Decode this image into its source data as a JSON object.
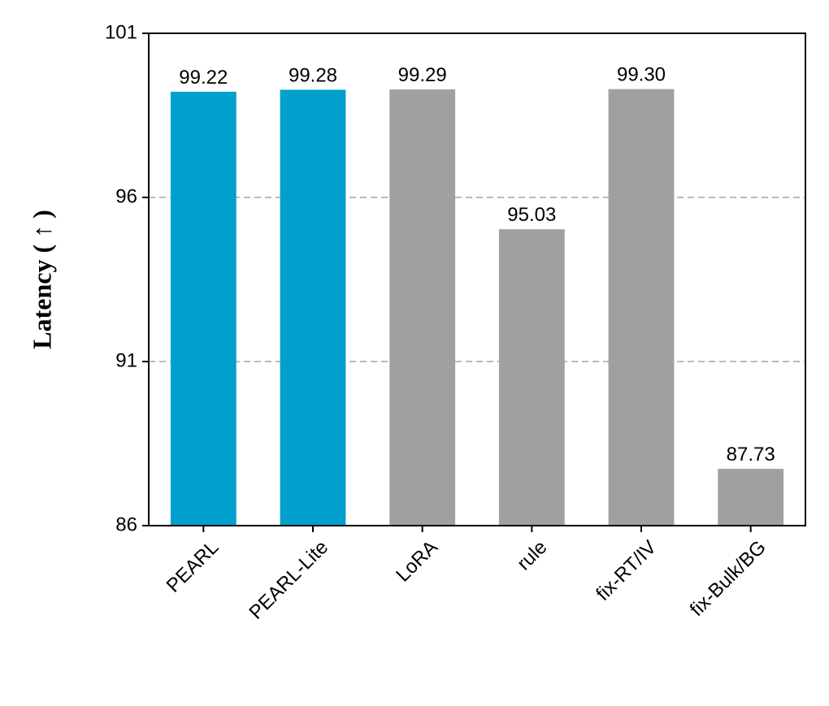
{
  "chart_data": {
    "type": "bar",
    "y_label": "Latency ( ↑ )",
    "categories": [
      "PEARL",
      "PEARL-Lite",
      "LoRA",
      "rule",
      "fix-RT/IV",
      "fix-Bulk/BG"
    ],
    "values": [
      99.22,
      99.28,
      99.29,
      95.03,
      99.3,
      87.73
    ],
    "value_labels": [
      "99.22",
      "99.28",
      "99.29",
      "95.03",
      "99.30",
      "87.73"
    ],
    "colors": [
      "#00a0cc",
      "#00a0cc",
      "#a0a0a0",
      "#a0a0a0",
      "#a0a0a0",
      "#a0a0a0"
    ],
    "ylim": [
      86,
      101
    ],
    "yticks": [
      86,
      91,
      96,
      101
    ],
    "grid": true
  }
}
